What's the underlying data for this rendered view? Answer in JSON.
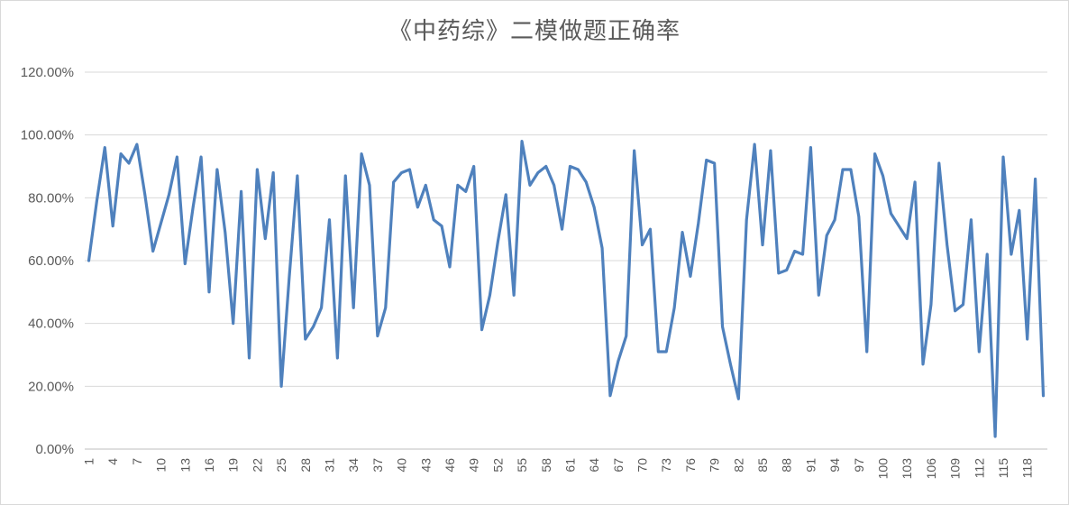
{
  "chart_data": {
    "type": "line",
    "title": "《中药综》二模做题正确率",
    "xlabel": "",
    "ylabel": "",
    "ylim": [
      0,
      1.2
    ],
    "yticks": [
      "0.00%",
      "20.00%",
      "40.00%",
      "60.00%",
      "80.00%",
      "100.00%",
      "120.00%"
    ],
    "ytick_values": [
      0,
      0.2,
      0.4,
      0.6,
      0.8,
      1.0,
      1.2
    ],
    "x_count": 120,
    "xtick_labels": [
      "1",
      "4",
      "7",
      "10",
      "13",
      "16",
      "19",
      "22",
      "25",
      "28",
      "31",
      "34",
      "37",
      "40",
      "43",
      "46",
      "49",
      "52",
      "55",
      "58",
      "61",
      "64",
      "67",
      "70",
      "73",
      "76",
      "79",
      "82",
      "85",
      "88",
      "91",
      "94",
      "97",
      "100",
      "103",
      "106",
      "109",
      "112",
      "115",
      "118"
    ],
    "grid": true,
    "legend": "none",
    "line_color": "#4f81bd",
    "series": [
      {
        "values": [
          0.6,
          0.79,
          0.96,
          0.71,
          0.94,
          0.91,
          0.97,
          0.81,
          0.63,
          0.72,
          0.81,
          0.93,
          0.59,
          0.77,
          0.93,
          0.5,
          0.89,
          0.69,
          0.4,
          0.82,
          0.29,
          0.89,
          0.67,
          0.88,
          0.2,
          0.55,
          0.87,
          0.35,
          0.39,
          0.45,
          0.73,
          0.29,
          0.87,
          0.45,
          0.94,
          0.84,
          0.36,
          0.45,
          0.85,
          0.88,
          0.89,
          0.77,
          0.84,
          0.73,
          0.71,
          0.58,
          0.84,
          0.82,
          0.9,
          0.38,
          0.49,
          0.66,
          0.81,
          0.49,
          0.98,
          0.84,
          0.88,
          0.9,
          0.84,
          0.7,
          0.9,
          0.89,
          0.85,
          0.77,
          0.64,
          0.17,
          0.28,
          0.36,
          0.95,
          0.65,
          0.7,
          0.31,
          0.31,
          0.45,
          0.69,
          0.55,
          0.72,
          0.92,
          0.91,
          0.39,
          0.27,
          0.16,
          0.73,
          0.97,
          0.65,
          0.95,
          0.56,
          0.57,
          0.63,
          0.62,
          0.96,
          0.49,
          0.68,
          0.73,
          0.89,
          0.89,
          0.74,
          0.31,
          0.94,
          0.87,
          0.75,
          0.71,
          0.67,
          0.85,
          0.27,
          0.46,
          0.91,
          0.65,
          0.44,
          0.46,
          0.73,
          0.31,
          0.62,
          0.04,
          0.93,
          0.62,
          0.76,
          0.35,
          0.86,
          0.17
        ]
      }
    ]
  }
}
